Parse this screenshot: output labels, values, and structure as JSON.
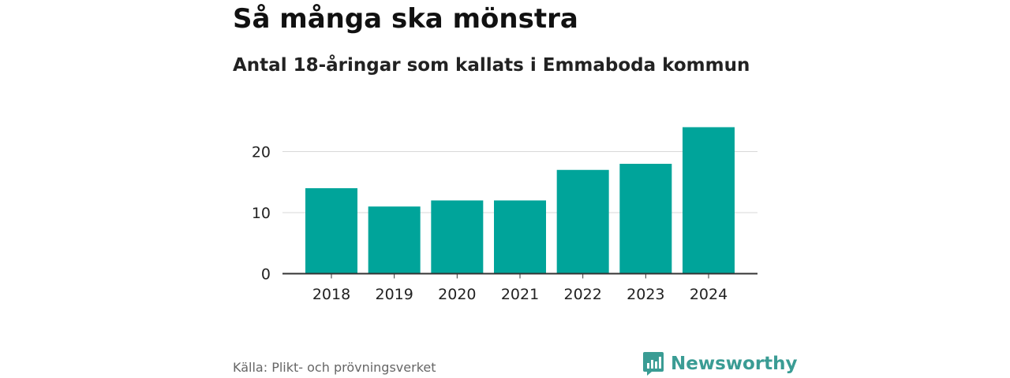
{
  "chart_data": {
    "type": "bar",
    "title": "Så många ska mönstra",
    "subtitle": "Antal 18-åringar som kallats i Emmaboda kommun",
    "categories": [
      "2018",
      "2019",
      "2020",
      "2021",
      "2022",
      "2023",
      "2024"
    ],
    "values": [
      14,
      11,
      12,
      12,
      17,
      18,
      24
    ],
    "xlabel": "",
    "ylabel": "",
    "ylim": [
      0,
      24
    ],
    "yticks": [
      "0",
      "10",
      "20"
    ],
    "grid": true,
    "bar_color": "#00a49a"
  },
  "footer": {
    "source": "Källa: Plikt- och prövningsverket",
    "brand": "Newsworthy",
    "brand_icon": "bar-chart-badge-icon",
    "brand_color": "#3a9c94"
  }
}
